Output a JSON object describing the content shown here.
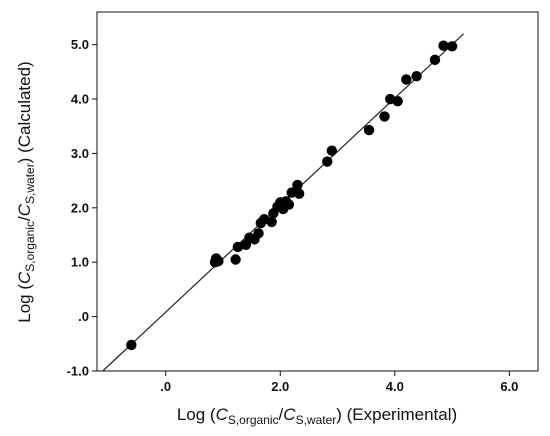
{
  "chart_data": {
    "type": "scatter",
    "xlabel": {
      "prefix": "Log (",
      "var1": "C",
      "sub1": "S,organic",
      "sep": "/",
      "var2": "C",
      "sub2": "S,water",
      "suffix": ")  (Experimental)"
    },
    "ylabel": {
      "prefix": "Log (",
      "var1": "C",
      "sub1": "S,organic",
      "sep": "/",
      "var2": "C",
      "sub2": "S,water",
      "suffix": ")  (Calculated)"
    },
    "xlim": [
      -1.2,
      6.5
    ],
    "ylim": [
      -1.0,
      5.6
    ],
    "x_ticks": [
      {
        "v": 0,
        "label": ".0"
      },
      {
        "v": 2,
        "label": "2.0"
      },
      {
        "v": 4,
        "label": "4.0"
      },
      {
        "v": 6,
        "label": "6.0"
      }
    ],
    "y_ticks": [
      {
        "v": -1,
        "label": "-1.0"
      },
      {
        "v": 0,
        "label": ".0"
      },
      {
        "v": 1,
        "label": "1.0"
      },
      {
        "v": 2,
        "label": "2.0"
      },
      {
        "v": 3,
        "label": "3.0"
      },
      {
        "v": 4,
        "label": "4.0"
      },
      {
        "v": 5,
        "label": "5.0"
      }
    ],
    "grid": false,
    "legend": "none",
    "fit_line": {
      "x": [
        -1.1,
        5.2
      ],
      "y": [
        -1.0,
        5.2
      ]
    },
    "points": [
      {
        "x": -0.6,
        "y": -0.52
      },
      {
        "x": 0.86,
        "y": 1.0
      },
      {
        "x": 0.88,
        "y": 1.07
      },
      {
        "x": 0.92,
        "y": 1.02
      },
      {
        "x": 1.22,
        "y": 1.05
      },
      {
        "x": 1.26,
        "y": 1.28
      },
      {
        "x": 1.4,
        "y": 1.32
      },
      {
        "x": 1.46,
        "y": 1.45
      },
      {
        "x": 1.55,
        "y": 1.42
      },
      {
        "x": 1.62,
        "y": 1.53
      },
      {
        "x": 1.66,
        "y": 1.72
      },
      {
        "x": 1.72,
        "y": 1.79
      },
      {
        "x": 1.85,
        "y": 1.74
      },
      {
        "x": 1.88,
        "y": 1.9
      },
      {
        "x": 1.95,
        "y": 2.02
      },
      {
        "x": 2.0,
        "y": 2.1
      },
      {
        "x": 2.05,
        "y": 1.98
      },
      {
        "x": 2.1,
        "y": 2.12
      },
      {
        "x": 2.15,
        "y": 2.06
      },
      {
        "x": 2.2,
        "y": 2.28
      },
      {
        "x": 2.3,
        "y": 2.42
      },
      {
        "x": 2.33,
        "y": 2.26
      },
      {
        "x": 2.82,
        "y": 2.85
      },
      {
        "x": 2.9,
        "y": 3.05
      },
      {
        "x": 3.55,
        "y": 3.43
      },
      {
        "x": 3.82,
        "y": 3.68
      },
      {
        "x": 3.92,
        "y": 4.0
      },
      {
        "x": 4.05,
        "y": 3.96
      },
      {
        "x": 4.2,
        "y": 4.36
      },
      {
        "x": 4.38,
        "y": 4.42
      },
      {
        "x": 4.7,
        "y": 4.72
      },
      {
        "x": 4.85,
        "y": 4.98
      },
      {
        "x": 5.0,
        "y": 4.97
      }
    ]
  }
}
